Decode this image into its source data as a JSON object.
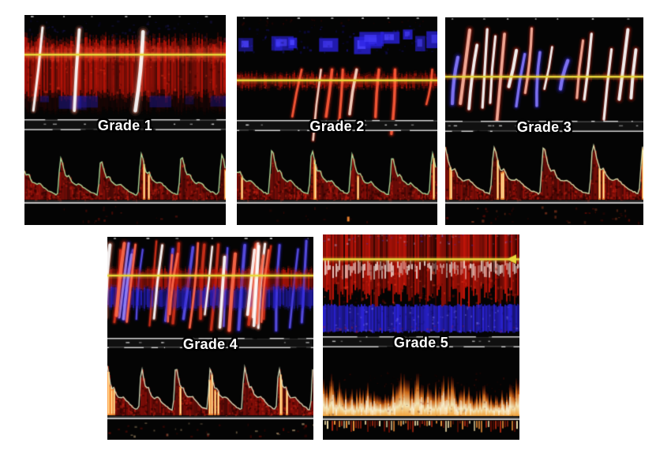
{
  "figure": {
    "background_color": "#ffffff",
    "panel_background": "#000000",
    "colors": {
      "doppler_red": "#c01408",
      "doppler_blue": "#2a22d8",
      "cursor_yellow": "#e8d83a",
      "envelope_green": "#b2e09e",
      "spectrum_red": "#8c0e08",
      "spectrum_bright_yellow": "#ffd878",
      "label_color": "#ffffff",
      "baseline_gray": "#cccccc"
    },
    "panels": [
      {
        "label": "Grade 1"
      },
      {
        "label": "Grade 2"
      },
      {
        "label": "Grade 3"
      },
      {
        "label": "Grade 4"
      },
      {
        "label": "Grade 5"
      }
    ]
  }
}
